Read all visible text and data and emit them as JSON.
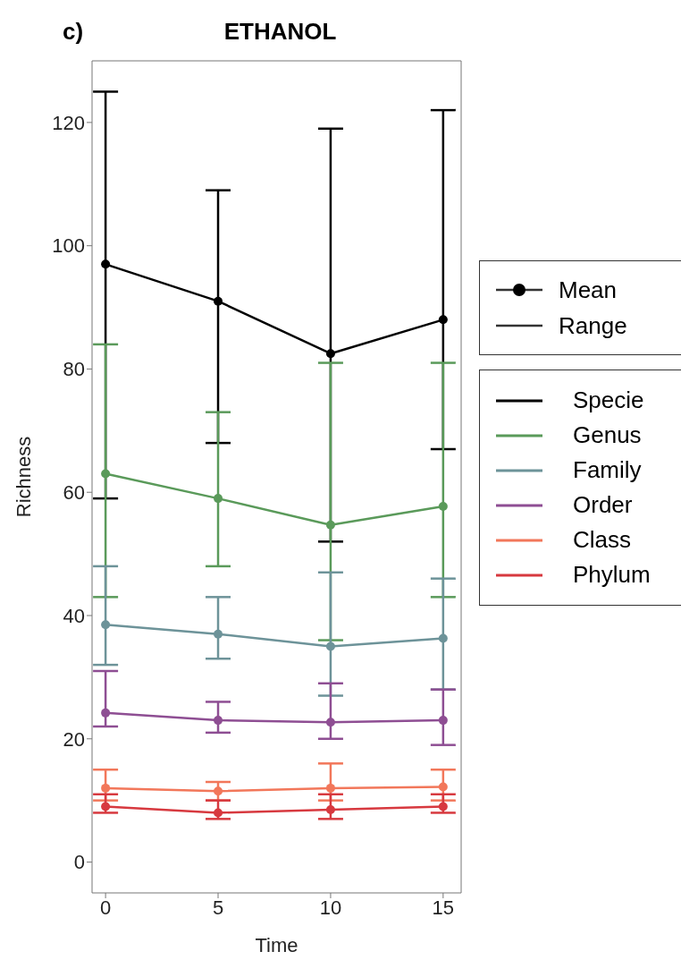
{
  "chart_data": {
    "type": "line",
    "title": "ETHANOL",
    "xlabel": "Time",
    "ylabel": "Richness",
    "annotations": [
      "c)",
      "Mean",
      "Range"
    ],
    "x": [
      0,
      5,
      10,
      15
    ],
    "xlim": [
      -0.6,
      15.8
    ],
    "xticks": [
      0,
      5,
      10,
      15
    ],
    "ylim": [
      -5,
      130
    ],
    "yticks": [
      0,
      20,
      40,
      60,
      80,
      100,
      120
    ],
    "grid": false,
    "legend": "right",
    "marker": "circle",
    "line_style": "solid",
    "series": [
      {
        "name": "Specie",
        "color": "#000000",
        "values": [
          97,
          91,
          82.5,
          88
        ],
        "errors": [
          [
            59,
            125
          ],
          [
            68,
            109
          ],
          [
            52,
            119
          ],
          [
            67,
            122
          ]
        ]
      },
      {
        "name": "Genus",
        "color": "#5a9a5a",
        "values": [
          63,
          59,
          54.7,
          57.7
        ],
        "errors": [
          [
            43,
            84
          ],
          [
            48,
            73
          ],
          [
            36,
            81
          ],
          [
            43,
            81
          ]
        ]
      },
      {
        "name": "Family",
        "color": "#6d9399",
        "values": [
          38.5,
          37,
          35,
          36.3
        ],
        "errors": [
          [
            32,
            48
          ],
          [
            33,
            43
          ],
          [
            27,
            47
          ],
          [
            28,
            46
          ]
        ]
      },
      {
        "name": "Order",
        "color": "#8e4e93",
        "values": [
          24.2,
          23,
          22.7,
          23
        ],
        "errors": [
          [
            22,
            31
          ],
          [
            21,
            26
          ],
          [
            20,
            29
          ],
          [
            19,
            28
          ]
        ]
      },
      {
        "name": "Class",
        "color": "#f2775a",
        "values": [
          12,
          11.5,
          12,
          12.2
        ],
        "errors": [
          [
            10,
            15
          ],
          [
            10,
            13
          ],
          [
            10,
            16
          ],
          [
            10,
            15
          ]
        ]
      },
      {
        "name": "Phylum",
        "color": "#d7393f",
        "values": [
          9,
          8,
          8.5,
          9
        ],
        "errors": [
          [
            8,
            11
          ],
          [
            7,
            10
          ],
          [
            7,
            11
          ],
          [
            8,
            11
          ]
        ]
      }
    ]
  }
}
